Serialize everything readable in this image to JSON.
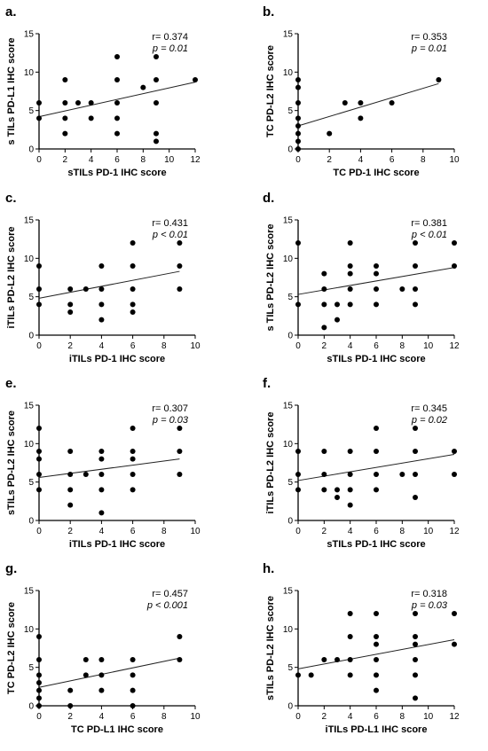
{
  "chart_data": [
    {
      "panel": "a.",
      "type": "scatter",
      "xlabel": "sTILs PD-1 IHC score",
      "ylabel": "s TILs PD-L1 IHC score",
      "xlim": [
        0,
        12
      ],
      "ylim": [
        0,
        15
      ],
      "xticks": [
        0,
        2,
        4,
        6,
        8,
        10,
        12
      ],
      "yticks": [
        0,
        5,
        10,
        15
      ],
      "stat_r": "r= 0.374",
      "stat_p": "p = 0.01",
      "points": [
        [
          0,
          4
        ],
        [
          0,
          6
        ],
        [
          2,
          2
        ],
        [
          2,
          4
        ],
        [
          2,
          6
        ],
        [
          2,
          9
        ],
        [
          3,
          6
        ],
        [
          4,
          4
        ],
        [
          4,
          6
        ],
        [
          6,
          2
        ],
        [
          6,
          4
        ],
        [
          6,
          6
        ],
        [
          6,
          9
        ],
        [
          6,
          12
        ],
        [
          8,
          8
        ],
        [
          9,
          1
        ],
        [
          9,
          2
        ],
        [
          9,
          6
        ],
        [
          9,
          9
        ],
        [
          9,
          12
        ],
        [
          12,
          9
        ]
      ],
      "fit": [
        [
          0,
          4.2
        ],
        [
          12,
          8.7
        ]
      ]
    },
    {
      "panel": "b.",
      "type": "scatter",
      "xlabel": "TC PD-1 IHC score",
      "ylabel": "TC PD-L2 IHC score",
      "xlim": [
        0,
        10
      ],
      "ylim": [
        0,
        15
      ],
      "xticks": [
        0,
        2,
        4,
        6,
        8,
        10
      ],
      "yticks": [
        0,
        5,
        10,
        15
      ],
      "stat_r": "r= 0.353",
      "stat_p": "p = 0.01",
      "points": [
        [
          0,
          0
        ],
        [
          0,
          1
        ],
        [
          0,
          2
        ],
        [
          0,
          3
        ],
        [
          0,
          4
        ],
        [
          0,
          6
        ],
        [
          0,
          8
        ],
        [
          0,
          9
        ],
        [
          2,
          2
        ],
        [
          3,
          6
        ],
        [
          4,
          4
        ],
        [
          4,
          6
        ],
        [
          6,
          6
        ],
        [
          9,
          9
        ]
      ],
      "fit": [
        [
          0,
          3
        ],
        [
          9,
          8.5
        ]
      ]
    },
    {
      "panel": "c.",
      "type": "scatter",
      "xlabel": "iTILs PD-1 IHC score",
      "ylabel": "iTILs PD-L2 IHC score",
      "xlim": [
        0,
        10
      ],
      "ylim": [
        0,
        15
      ],
      "xticks": [
        0,
        2,
        4,
        6,
        8,
        10
      ],
      "yticks": [
        0,
        5,
        10,
        15
      ],
      "stat_r": "r= 0.431",
      "stat_p": "p < 0.01",
      "points": [
        [
          0,
          4
        ],
        [
          0,
          6
        ],
        [
          0,
          9
        ],
        [
          2,
          3
        ],
        [
          2,
          4
        ],
        [
          2,
          6
        ],
        [
          3,
          6
        ],
        [
          4,
          2
        ],
        [
          4,
          4
        ],
        [
          4,
          6
        ],
        [
          4,
          9
        ],
        [
          6,
          3
        ],
        [
          6,
          4
        ],
        [
          6,
          6
        ],
        [
          6,
          9
        ],
        [
          6,
          12
        ],
        [
          9,
          6
        ],
        [
          9,
          9
        ],
        [
          9,
          12
        ]
      ],
      "fit": [
        [
          0,
          4.8
        ],
        [
          9,
          8.3
        ]
      ]
    },
    {
      "panel": "d.",
      "type": "scatter",
      "xlabel": "sTILs PD-1 IHC score",
      "ylabel": "s TILs PD-L2 IHC score",
      "xlim": [
        0,
        12
      ],
      "ylim": [
        0,
        15
      ],
      "xticks": [
        0,
        2,
        4,
        6,
        8,
        10,
        12
      ],
      "yticks": [
        0,
        5,
        10,
        15
      ],
      "stat_r": "r= 0.381",
      "stat_p": "p < 0.01",
      "points": [
        [
          0,
          4
        ],
        [
          0,
          12
        ],
        [
          2,
          1
        ],
        [
          2,
          4
        ],
        [
          2,
          6
        ],
        [
          2,
          8
        ],
        [
          3,
          2
        ],
        [
          3,
          4
        ],
        [
          4,
          4
        ],
        [
          4,
          6
        ],
        [
          4,
          8
        ],
        [
          4,
          9
        ],
        [
          4,
          12
        ],
        [
          6,
          4
        ],
        [
          6,
          6
        ],
        [
          6,
          8
        ],
        [
          6,
          9
        ],
        [
          8,
          6
        ],
        [
          9,
          4
        ],
        [
          9,
          6
        ],
        [
          9,
          9
        ],
        [
          9,
          12
        ],
        [
          12,
          9
        ],
        [
          12,
          12
        ]
      ],
      "fit": [
        [
          0,
          5.3
        ],
        [
          12,
          8.8
        ]
      ]
    },
    {
      "panel": "e.",
      "type": "scatter",
      "xlabel": "iTILs PD-1 IHC score",
      "ylabel": "sTILs PD-L2 IHC score",
      "xlim": [
        0,
        10
      ],
      "ylim": [
        0,
        15
      ],
      "xticks": [
        0,
        2,
        4,
        6,
        8,
        10
      ],
      "yticks": [
        0,
        5,
        10,
        15
      ],
      "stat_r": "r= 0.307",
      "stat_p": "p = 0.03",
      "points": [
        [
          0,
          4
        ],
        [
          0,
          6
        ],
        [
          0,
          8
        ],
        [
          0,
          9
        ],
        [
          0,
          12
        ],
        [
          2,
          2
        ],
        [
          2,
          4
        ],
        [
          2,
          6
        ],
        [
          2,
          9
        ],
        [
          3,
          6
        ],
        [
          4,
          1
        ],
        [
          4,
          4
        ],
        [
          4,
          6
        ],
        [
          4,
          8
        ],
        [
          4,
          9
        ],
        [
          6,
          4
        ],
        [
          6,
          6
        ],
        [
          6,
          8
        ],
        [
          6,
          9
        ],
        [
          6,
          12
        ],
        [
          9,
          6
        ],
        [
          9,
          9
        ],
        [
          9,
          12
        ]
      ],
      "fit": [
        [
          0,
          5.6
        ],
        [
          9,
          8
        ]
      ]
    },
    {
      "panel": "f.",
      "type": "scatter",
      "xlabel": "sTILs PD-1 IHC score",
      "ylabel": "iTILs PD-L2 IHC score",
      "xlim": [
        0,
        12
      ],
      "ylim": [
        0,
        15
      ],
      "xticks": [
        0,
        2,
        4,
        6,
        8,
        10,
        12
      ],
      "yticks": [
        0,
        5,
        10,
        15
      ],
      "stat_r": "r= 0.345",
      "stat_p": "p = 0.02",
      "points": [
        [
          0,
          4
        ],
        [
          0,
          6
        ],
        [
          0,
          9
        ],
        [
          2,
          4
        ],
        [
          2,
          6
        ],
        [
          2,
          9
        ],
        [
          3,
          3
        ],
        [
          3,
          4
        ],
        [
          4,
          2
        ],
        [
          4,
          4
        ],
        [
          4,
          6
        ],
        [
          4,
          9
        ],
        [
          6,
          4
        ],
        [
          6,
          6
        ],
        [
          6,
          9
        ],
        [
          6,
          12
        ],
        [
          8,
          6
        ],
        [
          9,
          3
        ],
        [
          9,
          6
        ],
        [
          9,
          9
        ],
        [
          9,
          12
        ],
        [
          12,
          6
        ],
        [
          12,
          9
        ]
      ],
      "fit": [
        [
          0,
          5.2
        ],
        [
          12,
          8.6
        ]
      ]
    },
    {
      "panel": "g.",
      "type": "scatter",
      "xlabel": "TC PD-L1 IHC score",
      "ylabel": "TC PD-L2 IHC score",
      "xlim": [
        0,
        10
      ],
      "ylim": [
        0,
        15
      ],
      "xticks": [
        0,
        2,
        4,
        6,
        8,
        10
      ],
      "yticks": [
        0,
        5,
        10,
        15
      ],
      "stat_r": "r= 0.457",
      "stat_p": "p < 0.001",
      "points": [
        [
          0,
          0
        ],
        [
          0,
          1
        ],
        [
          0,
          2
        ],
        [
          0,
          3
        ],
        [
          0,
          4
        ],
        [
          0,
          6
        ],
        [
          0,
          9
        ],
        [
          2,
          0
        ],
        [
          2,
          2
        ],
        [
          3,
          4
        ],
        [
          3,
          6
        ],
        [
          4,
          2
        ],
        [
          4,
          4
        ],
        [
          4,
          6
        ],
        [
          6,
          0
        ],
        [
          6,
          2
        ],
        [
          6,
          4
        ],
        [
          6,
          6
        ],
        [
          9,
          6
        ],
        [
          9,
          9
        ]
      ],
      "fit": [
        [
          0,
          2.4
        ],
        [
          9,
          6.2
        ]
      ]
    },
    {
      "panel": "h.",
      "type": "scatter",
      "xlabel": "iTILs PD-L1 IHC score",
      "ylabel": "sTILs PD-L2 IHC score",
      "xlim": [
        0,
        12
      ],
      "ylim": [
        0,
        15
      ],
      "xticks": [
        0,
        2,
        4,
        6,
        8,
        10,
        12
      ],
      "yticks": [
        0,
        5,
        10,
        15
      ],
      "stat_r": "r= 0.318",
      "stat_p": "p = 0.03",
      "points": [
        [
          0,
          4
        ],
        [
          1,
          4
        ],
        [
          2,
          6
        ],
        [
          3,
          6
        ],
        [
          4,
          4
        ],
        [
          4,
          6
        ],
        [
          4,
          9
        ],
        [
          4,
          12
        ],
        [
          6,
          2
        ],
        [
          6,
          4
        ],
        [
          6,
          6
        ],
        [
          6,
          8
        ],
        [
          6,
          9
        ],
        [
          6,
          12
        ],
        [
          9,
          1
        ],
        [
          9,
          4
        ],
        [
          9,
          6
        ],
        [
          9,
          8
        ],
        [
          9,
          9
        ],
        [
          9,
          12
        ],
        [
          12,
          8
        ],
        [
          12,
          12
        ]
      ],
      "fit": [
        [
          0,
          4.8
        ],
        [
          12,
          8.6
        ]
      ]
    }
  ]
}
